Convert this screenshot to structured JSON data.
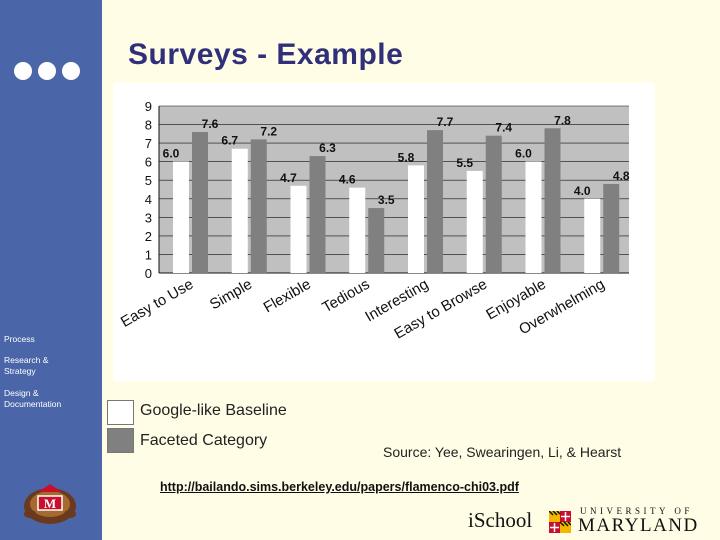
{
  "slide": {
    "title": "Surveys - Example",
    "source": "Source: Yee, Swearingen, Li, & Hearst",
    "url": "http://bailando.sims.berkeley.edu/papers/flamenco-chi03.pdf"
  },
  "sidebar": {
    "items": [
      {
        "label": "Process"
      },
      {
        "label": "Research & Strategy"
      },
      {
        "label": "Design & Documentation"
      }
    ]
  },
  "footer": {
    "ischool": "iSchool",
    "university_of": "UNIVERSITY OF",
    "maryland": "MARYLAND"
  },
  "colors": {
    "sidebar": "#4a66a8",
    "title": "#30307a",
    "baseline_bar": "#ffffff",
    "faceted_bar": "#808080",
    "plot_bg": "#c0c0c0",
    "background": "#fffde6"
  },
  "chart_data": {
    "type": "bar",
    "categories": [
      "Easy to Use",
      "Simple",
      "Flexible",
      "Tedious",
      "Interesting",
      "Easy to Browse",
      "Enjoyable",
      "Overwhelming"
    ],
    "series": [
      {
        "name": "Google-like Baseline",
        "values": [
          6.0,
          6.7,
          4.7,
          4.6,
          5.8,
          5.5,
          6.0,
          4.0
        ]
      },
      {
        "name": "Faceted Category",
        "values": [
          7.6,
          7.2,
          6.3,
          3.5,
          7.7,
          7.4,
          7.8,
          4.8
        ]
      }
    ],
    "data_labels": [
      [
        "6.0",
        "6.7",
        "4.7",
        "4.6",
        "5.8",
        "5.5",
        "6.0",
        "4.0"
      ],
      [
        "7.6",
        "7.2",
        "6.3",
        "3.5",
        "7.7",
        "7.4",
        "7.8",
        "4.8"
      ]
    ],
    "ylim": [
      0,
      9
    ],
    "yticks": [
      "0",
      "1",
      "2",
      "3",
      "4",
      "5",
      "6",
      "7",
      "8",
      "9"
    ],
    "title": "",
    "xlabel": "",
    "ylabel": "",
    "grid": true,
    "legend_position": "bottom-left"
  }
}
